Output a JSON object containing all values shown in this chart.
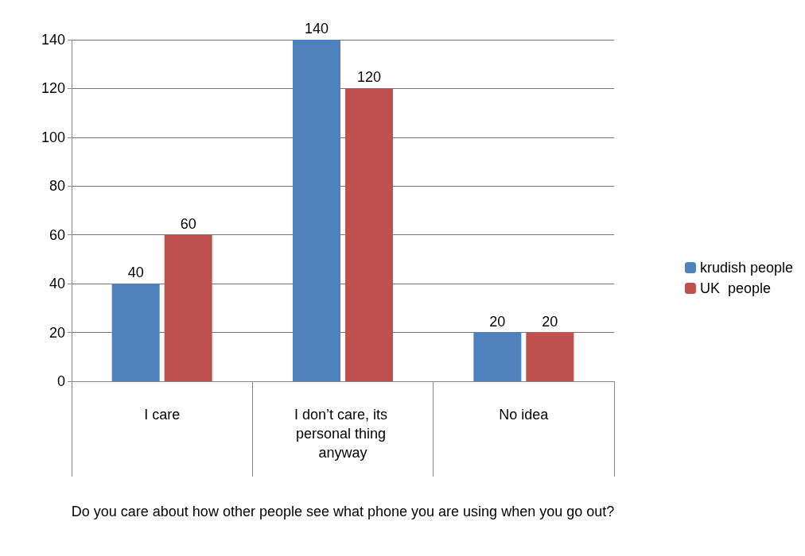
{
  "chart_data": {
    "type": "bar",
    "xlabel": "Do you care about how other people see what phone you are using when you go out?",
    "categories": [
      "I care",
      "I don’t care, its personal thing anyway",
      "No idea"
    ],
    "series": [
      {
        "name": "krudish people",
        "color": "#4f81bd",
        "values": [
          40,
          140,
          20
        ]
      },
      {
        "name": "UK  people",
        "color": "#c0504d",
        "values": [
          60,
          120,
          20
        ]
      }
    ],
    "ylim": [
      0,
      140
    ],
    "yticks": [
      0,
      20,
      40,
      60,
      80,
      100,
      120,
      140
    ],
    "grid": "y",
    "legend": "right",
    "data_labels": true
  }
}
